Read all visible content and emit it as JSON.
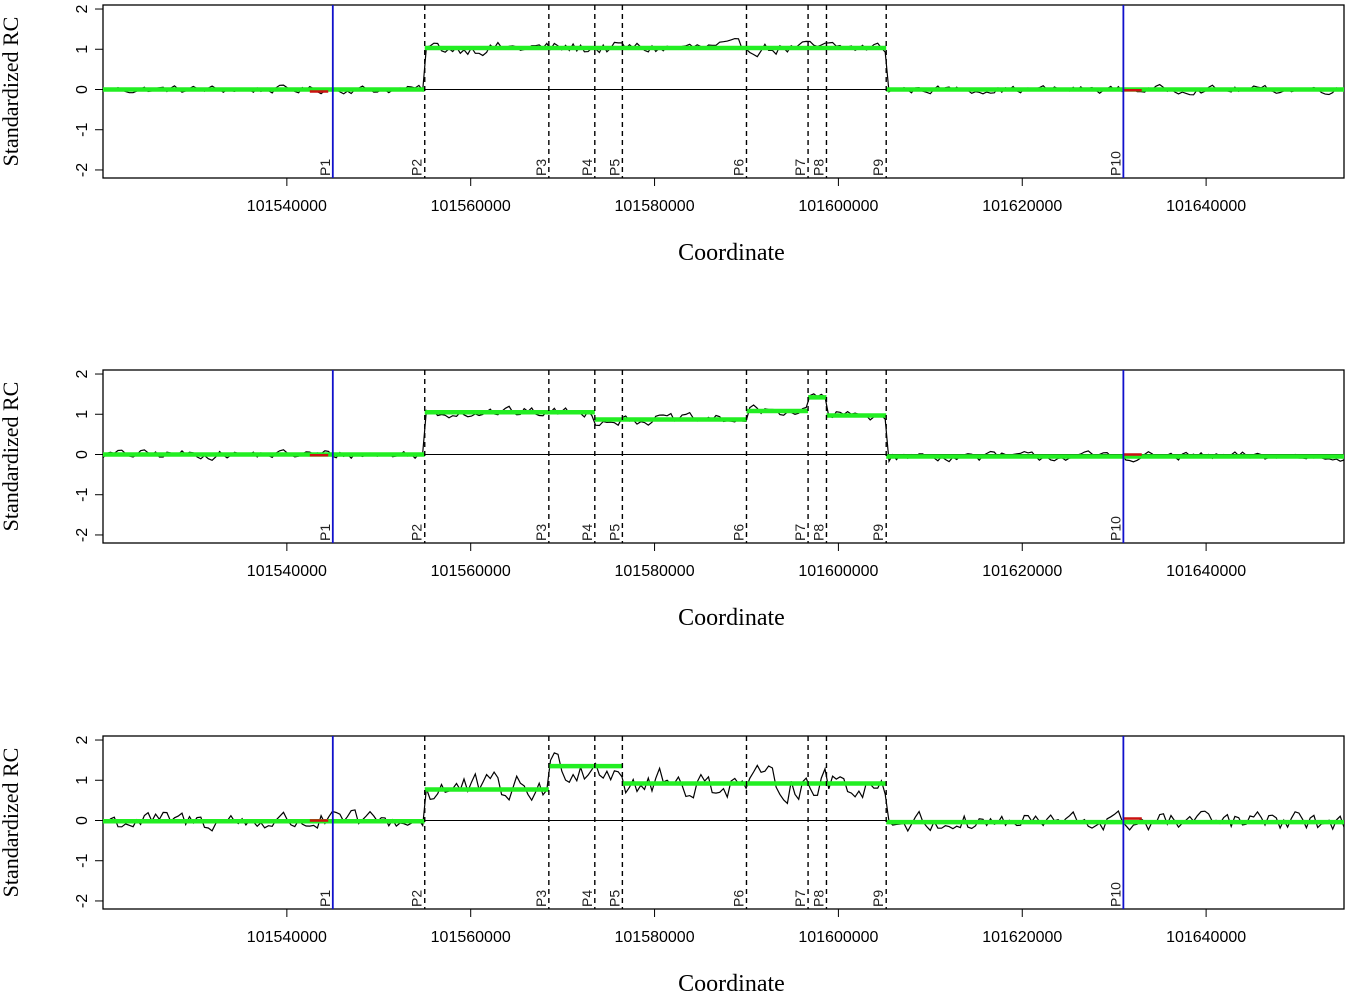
{
  "chart_data": [
    {
      "type": "line",
      "xlabel": "Coordinate",
      "ylabel": "Standardized RC",
      "xlim": [
        101520000,
        101655000
      ],
      "ylim": [
        -2.2,
        2.1
      ],
      "x_ticks": [
        101540000,
        101560000,
        101580000,
        101600000,
        101620000,
        101640000
      ],
      "x_tick_labels": [
        "101540000",
        "101560000",
        "101580000",
        "101600000",
        "101620000",
        "101640000"
      ],
      "y_ticks": [
        -2,
        -1,
        0,
        1,
        2
      ],
      "y_tick_labels": [
        "-2",
        "-1",
        "0",
        "1",
        "2"
      ],
      "breakpoints": [
        {
          "label": "P1",
          "x": 101545000,
          "style": "solid-blue"
        },
        {
          "label": "P2",
          "x": 101555000,
          "style": "dashed"
        },
        {
          "label": "P3",
          "x": 101568500,
          "style": "dashed"
        },
        {
          "label": "P4",
          "x": 101573500,
          "style": "dashed"
        },
        {
          "label": "P5",
          "x": 101576500,
          "style": "dashed"
        },
        {
          "label": "P6",
          "x": 101590000,
          "style": "dashed"
        },
        {
          "label": "P7",
          "x": 101596700,
          "style": "dashed"
        },
        {
          "label": "P8",
          "x": 101598700,
          "style": "dashed"
        },
        {
          "label": "P9",
          "x": 101605200,
          "style": "dashed"
        },
        {
          "label": "P10",
          "x": 101631000,
          "style": "solid-blue"
        }
      ],
      "segments": [
        {
          "x0": 101520000,
          "x1": 101555000,
          "y": 0.0
        },
        {
          "x0": 101555000,
          "x1": 101605200,
          "y": 1.03
        },
        {
          "x0": 101605200,
          "x1": 101655000,
          "y": 0.0
        }
      ],
      "red_marks": [
        {
          "x0": 101542500,
          "x1": 101544500,
          "y": -0.05
        },
        {
          "x0": 101631000,
          "x1": 101633000,
          "y": -0.02
        }
      ],
      "noise_amplitude": [
        0.12,
        0.2,
        0.12
      ],
      "colors": {
        "signal": "#000000",
        "segment": "#22ee22",
        "marker": "#cc1111",
        "outer_breakpoint": "#1111cc"
      }
    },
    {
      "type": "line",
      "xlabel": "Coordinate",
      "ylabel": "Standardized RC",
      "xlim": [
        101520000,
        101655000
      ],
      "ylim": [
        -2.2,
        2.1
      ],
      "x_ticks": [
        101540000,
        101560000,
        101580000,
        101600000,
        101620000,
        101640000
      ],
      "x_tick_labels": [
        "101540000",
        "101560000",
        "101580000",
        "101600000",
        "101620000",
        "101640000"
      ],
      "y_ticks": [
        -2,
        -1,
        0,
        1,
        2
      ],
      "y_tick_labels": [
        "-2",
        "-1",
        "0",
        "1",
        "2"
      ],
      "breakpoints": [
        {
          "label": "P1",
          "x": 101545000,
          "style": "solid-blue"
        },
        {
          "label": "P2",
          "x": 101555000,
          "style": "dashed"
        },
        {
          "label": "P3",
          "x": 101568500,
          "style": "dashed"
        },
        {
          "label": "P4",
          "x": 101573500,
          "style": "dashed"
        },
        {
          "label": "P5",
          "x": 101576500,
          "style": "dashed"
        },
        {
          "label": "P6",
          "x": 101590000,
          "style": "dashed"
        },
        {
          "label": "P7",
          "x": 101596700,
          "style": "dashed"
        },
        {
          "label": "P8",
          "x": 101598700,
          "style": "dashed"
        },
        {
          "label": "P9",
          "x": 101605200,
          "style": "dashed"
        },
        {
          "label": "P10",
          "x": 101631000,
          "style": "solid-blue"
        }
      ],
      "segments": [
        {
          "x0": 101520000,
          "x1": 101555000,
          "y": 0.0
        },
        {
          "x0": 101555000,
          "x1": 101573500,
          "y": 1.05
        },
        {
          "x0": 101573500,
          "x1": 101590000,
          "y": 0.87
        },
        {
          "x0": 101590000,
          "x1": 101596700,
          "y": 1.08
        },
        {
          "x0": 101596700,
          "x1": 101598700,
          "y": 1.42
        },
        {
          "x0": 101598700,
          "x1": 101605200,
          "y": 0.97
        },
        {
          "x0": 101605200,
          "x1": 101655000,
          "y": -0.05
        }
      ],
      "red_marks": [
        {
          "x0": 101542500,
          "x1": 101544500,
          "y": -0.02
        },
        {
          "x0": 101631000,
          "x1": 101633000,
          "y": 0.0
        }
      ],
      "noise_amplitude": [
        0.14,
        0.16,
        0.14
      ],
      "colors": {
        "signal": "#000000",
        "segment": "#22ee22",
        "marker": "#cc1111",
        "outer_breakpoint": "#1111cc"
      }
    },
    {
      "type": "line",
      "xlabel": "Coordinate",
      "ylabel": "Standardized RC",
      "xlim": [
        101520000,
        101655000
      ],
      "ylim": [
        -2.2,
        2.1
      ],
      "x_ticks": [
        101540000,
        101560000,
        101580000,
        101600000,
        101620000,
        101640000
      ],
      "x_tick_labels": [
        "101540000",
        "101560000",
        "101580000",
        "101600000",
        "101620000",
        "101640000"
      ],
      "y_ticks": [
        -2,
        -1,
        0,
        1,
        2
      ],
      "y_tick_labels": [
        "-2",
        "-1",
        "0",
        "1",
        "2"
      ],
      "breakpoints": [
        {
          "label": "P1",
          "x": 101545000,
          "style": "solid-blue"
        },
        {
          "label": "P2",
          "x": 101555000,
          "style": "dashed"
        },
        {
          "label": "P3",
          "x": 101568500,
          "style": "dashed"
        },
        {
          "label": "P4",
          "x": 101573500,
          "style": "dashed"
        },
        {
          "label": "P5",
          "x": 101576500,
          "style": "dashed"
        },
        {
          "label": "P6",
          "x": 101590000,
          "style": "dashed"
        },
        {
          "label": "P7",
          "x": 101596700,
          "style": "dashed"
        },
        {
          "label": "P8",
          "x": 101598700,
          "style": "dashed"
        },
        {
          "label": "P9",
          "x": 101605200,
          "style": "dashed"
        },
        {
          "label": "P10",
          "x": 101631000,
          "style": "solid-blue"
        }
      ],
      "segments": [
        {
          "x0": 101520000,
          "x1": 101555000,
          "y": -0.02
        },
        {
          "x0": 101555000,
          "x1": 101568500,
          "y": 0.77
        },
        {
          "x0": 101568500,
          "x1": 101576500,
          "y": 1.35
        },
        {
          "x0": 101576500,
          "x1": 101605200,
          "y": 0.92
        },
        {
          "x0": 101605200,
          "x1": 101655000,
          "y": -0.04
        }
      ],
      "red_marks": [
        {
          "x0": 101542500,
          "x1": 101544500,
          "y": 0.0
        },
        {
          "x0": 101631000,
          "x1": 101633000,
          "y": 0.05
        }
      ],
      "noise_amplitude": [
        0.3,
        0.45,
        0.3
      ],
      "colors": {
        "signal": "#000000",
        "segment": "#22ee22",
        "marker": "#cc1111",
        "outer_breakpoint": "#1111cc"
      }
    }
  ]
}
